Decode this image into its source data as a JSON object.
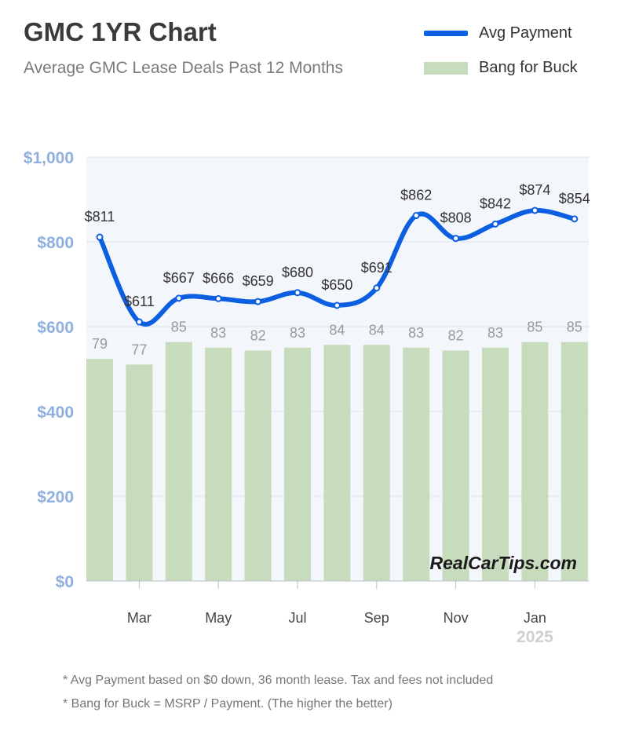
{
  "header": {
    "title": "GMC 1YR Chart",
    "subtitle": "Average GMC Lease Deals Past 12 Months"
  },
  "legend": [
    {
      "label": "Avg Payment",
      "color": "#0b5fe0"
    },
    {
      "label": "Bang for Buck",
      "color": "#c6dcbc"
    }
  ],
  "chart_data": {
    "type": "bar+line",
    "y_ticks": [
      "$0",
      "$200",
      "$400",
      "$600",
      "$800",
      "$1,000"
    ],
    "ylim": [
      0,
      1000
    ],
    "x_tick_labels": [
      "Mar",
      "May",
      "Jul",
      "Sep",
      "Nov",
      "Jan"
    ],
    "year_label": "2025",
    "series": [
      {
        "name": "Avg Payment",
        "type": "line",
        "color": "#0b5fe0",
        "values": [
          811,
          611,
          667,
          666,
          659,
          680,
          650,
          691,
          862,
          808,
          842,
          874,
          854
        ],
        "labels": [
          "$811",
          "$611",
          "$667",
          "$666",
          "$659",
          "$680",
          "$650",
          "$691",
          "$862",
          "$808",
          "$842",
          "$874",
          "$854"
        ]
      },
      {
        "name": "Bang for Buck",
        "type": "bar",
        "color": "#c6dcbc",
        "values": [
          79,
          77,
          85,
          83,
          82,
          83,
          84,
          84,
          83,
          82,
          83,
          85,
          85
        ]
      }
    ],
    "watermark": "RealCarTips.com"
  },
  "notes": [
    "* Avg Payment based on $0 down, 36 month lease. Tax and fees not included",
    "* Bang for Buck = MSRP / Payment. (The higher the better)"
  ]
}
